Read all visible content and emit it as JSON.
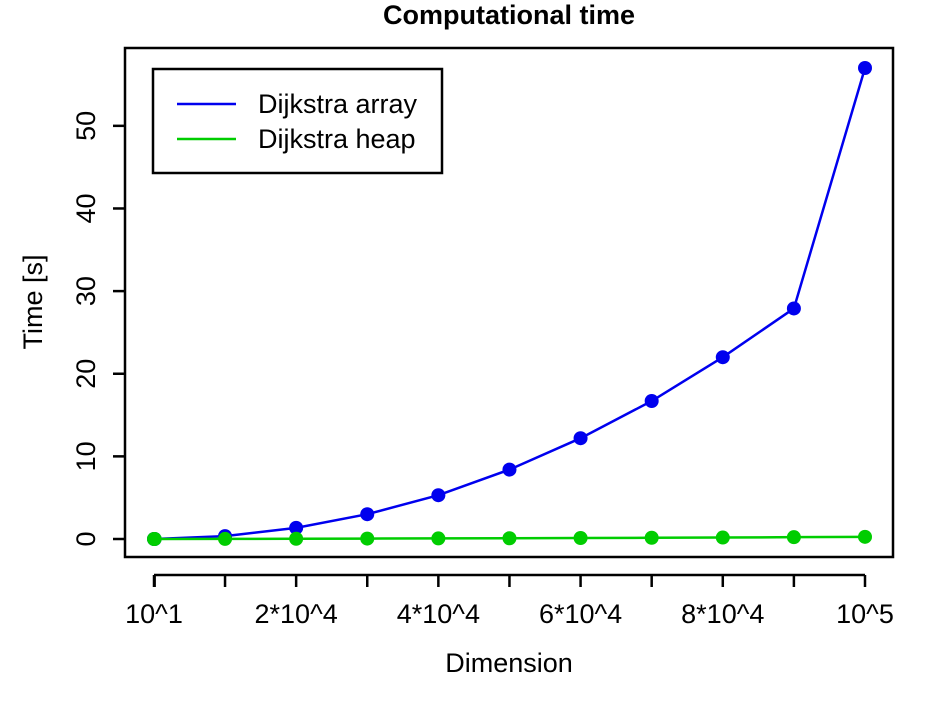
{
  "chart_data": {
    "type": "line",
    "title": "Computational time",
    "xlabel": "Dimension",
    "ylabel": "Time [s]",
    "xlim": [
      10,
      100000
    ],
    "ylim": [
      0,
      57
    ],
    "x_ticks": [
      10,
      100,
      10000,
      20000,
      30000,
      40000,
      50000,
      60000,
      70000,
      80000,
      90000,
      100000
    ],
    "x_tick_labels": [
      {
        "x": 10,
        "label": "10^1"
      },
      {
        "x": 20000,
        "label": "2*10^4"
      },
      {
        "x": 40000,
        "label": "4*10^4"
      },
      {
        "x": 60000,
        "label": "6*10^4"
      },
      {
        "x": 80000,
        "label": "8*10^4"
      },
      {
        "x": 100000,
        "label": "10^5"
      }
    ],
    "y_ticks": [
      0,
      10,
      20,
      30,
      40,
      50
    ],
    "grid": false,
    "legend_position": "top-left",
    "x": [
      10,
      100,
      10000,
      20000,
      30000,
      40000,
      50000,
      60000,
      70000,
      80000,
      90000,
      100000
    ],
    "series": [
      {
        "name": "Dijkstra array",
        "color": "#0000ee",
        "values": [
          0.0,
          0.0,
          0.35,
          1.35,
          3.0,
          5.3,
          8.4,
          12.2,
          16.7,
          22.0,
          27.9,
          57.0
        ]
      },
      {
        "name": "Dijkstra heap",
        "color": "#00cd00",
        "values": [
          0.0,
          0.0,
          0.01,
          0.03,
          0.05,
          0.07,
          0.09,
          0.12,
          0.15,
          0.18,
          0.22,
          0.26
        ]
      }
    ]
  }
}
